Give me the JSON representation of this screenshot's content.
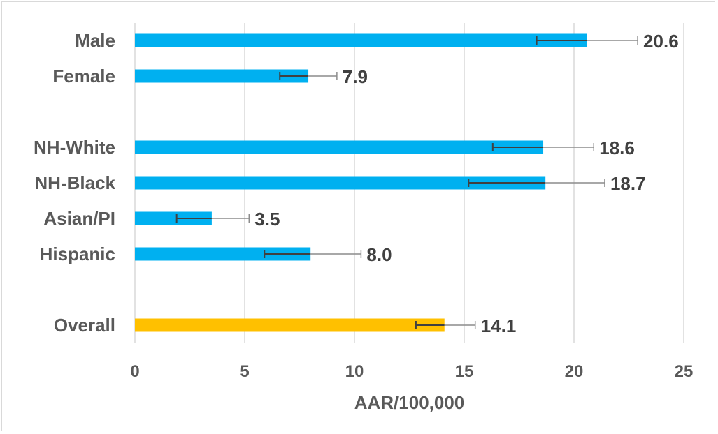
{
  "chart_data": {
    "type": "bar",
    "orientation": "horizontal",
    "title": "",
    "xlabel": "AAR/100,000",
    "ylabel": "",
    "xlim": [
      0,
      25
    ],
    "xticks": [
      "0",
      "5",
      "10",
      "15",
      "20",
      "25"
    ],
    "grid": true,
    "legend": "none",
    "categories": [
      "Male",
      "Female",
      "",
      "NH-White",
      "NH-Black",
      "Asian/PI",
      "Hispanic",
      "",
      "Overall"
    ],
    "values": [
      20.6,
      7.9,
      null,
      18.6,
      18.7,
      3.5,
      8.0,
      null,
      14.1
    ],
    "value_labels": [
      "20.6",
      "7.9",
      "",
      "18.6",
      "18.7",
      "3.5",
      "8.0",
      "",
      "14.1"
    ],
    "error_low": [
      18.3,
      6.6,
      null,
      16.3,
      15.2,
      1.9,
      5.9,
      null,
      12.8
    ],
    "error_high": [
      22.9,
      9.2,
      null,
      20.9,
      21.4,
      5.2,
      10.3,
      null,
      15.5
    ],
    "bar_colors": [
      "#00b0f0",
      "#00b0f0",
      null,
      "#00b0f0",
      "#00b0f0",
      "#00b0f0",
      "#00b0f0",
      null,
      "#ffc000"
    ]
  }
}
